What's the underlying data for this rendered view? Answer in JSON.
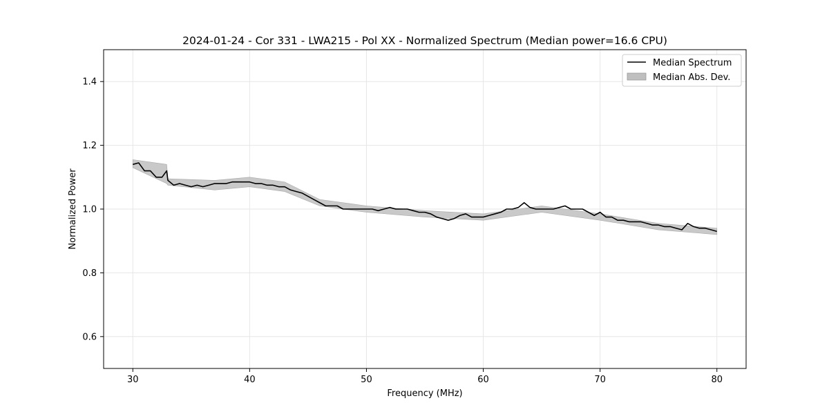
{
  "chart_data": {
    "type": "line",
    "title": "2024-01-24 - Cor 331 - LWA215 - Pol XX - Normalized Spectrum (Median power=16.6 CPU)",
    "xlabel": "Frequency (MHz)",
    "ylabel": "Normalized Power",
    "xlim": [
      27.5,
      82.5
    ],
    "ylim": [
      0.5,
      1.5
    ],
    "xticks": [
      30,
      40,
      50,
      60,
      70,
      80
    ],
    "yticks": [
      0.6,
      0.8,
      1.0,
      1.2,
      1.4
    ],
    "grid": true,
    "legend_position": "top-right",
    "legend": [
      {
        "label": "Median Spectrum",
        "kind": "line",
        "color": "#000000"
      },
      {
        "label": "Median Abs. Dev.",
        "kind": "band",
        "color": "#bfbfbf"
      }
    ],
    "series": [
      {
        "name": "Median Spectrum",
        "color": "#000000",
        "x": [
          30.0,
          30.5,
          31.0,
          31.5,
          32.0,
          32.5,
          32.9,
          33.0,
          33.5,
          34.0,
          34.5,
          35.0,
          35.5,
          36.0,
          36.5,
          37.0,
          37.5,
          38.0,
          38.5,
          39.0,
          39.5,
          40.0,
          40.5,
          41.0,
          41.5,
          42.0,
          42.5,
          43.0,
          43.5,
          44.0,
          44.5,
          45.0,
          45.5,
          46.0,
          46.5,
          47.0,
          47.5,
          48.0,
          48.5,
          49.0,
          49.5,
          50.0,
          50.5,
          51.0,
          51.5,
          52.0,
          52.5,
          53.0,
          53.5,
          54.0,
          54.5,
          55.0,
          55.5,
          56.0,
          56.5,
          57.0,
          57.5,
          58.0,
          58.5,
          59.0,
          59.5,
          60.0,
          60.5,
          61.0,
          61.5,
          62.0,
          62.5,
          63.0,
          63.5,
          64.0,
          64.5,
          65.0,
          65.5,
          66.0,
          66.5,
          67.0,
          67.5,
          68.0,
          68.5,
          69.0,
          69.5,
          70.0,
          70.5,
          71.0,
          71.5,
          72.0,
          72.5,
          73.0,
          73.5,
          74.0,
          74.5,
          75.0,
          75.5,
          76.0,
          76.5,
          77.0,
          77.5,
          78.0,
          78.5,
          79.0,
          79.5,
          80.0
        ],
        "values": [
          1.14,
          1.145,
          1.12,
          1.12,
          1.1,
          1.1,
          1.12,
          1.09,
          1.075,
          1.08,
          1.075,
          1.07,
          1.075,
          1.07,
          1.075,
          1.08,
          1.08,
          1.08,
          1.085,
          1.085,
          1.085,
          1.085,
          1.08,
          1.08,
          1.075,
          1.075,
          1.07,
          1.07,
          1.06,
          1.055,
          1.05,
          1.04,
          1.03,
          1.02,
          1.01,
          1.01,
          1.01,
          1.0,
          1.0,
          1.0,
          1.0,
          1.0,
          1.0,
          0.995,
          1.0,
          1.005,
          1.0,
          1.0,
          1.0,
          0.995,
          0.99,
          0.99,
          0.985,
          0.975,
          0.97,
          0.965,
          0.97,
          0.98,
          0.985,
          0.975,
          0.975,
          0.975,
          0.98,
          0.985,
          0.99,
          1.0,
          1.0,
          1.005,
          1.02,
          1.005,
          1.0,
          1.0,
          1.0,
          1.0,
          1.005,
          1.01,
          1.0,
          1.0,
          1.0,
          0.99,
          0.98,
          0.99,
          0.975,
          0.975,
          0.965,
          0.965,
          0.96,
          0.96,
          0.96,
          0.955,
          0.95,
          0.95,
          0.945,
          0.945,
          0.94,
          0.935,
          0.955,
          0.945,
          0.94,
          0.94,
          0.935,
          0.93
        ]
      },
      {
        "name": "Median Abs. Dev.",
        "color": "#bfbfbf",
        "x": [
          30.0,
          32.9,
          33.0,
          37.0,
          40.0,
          43.0,
          46.0,
          50.0,
          55.0,
          60.0,
          65.0,
          70.0,
          75.0,
          80.0
        ],
        "lower": [
          1.13,
          1.08,
          1.075,
          1.06,
          1.07,
          1.055,
          1.01,
          0.99,
          0.975,
          0.965,
          0.99,
          0.965,
          0.935,
          0.92
        ],
        "upper": [
          1.155,
          1.14,
          1.095,
          1.09,
          1.1,
          1.085,
          1.03,
          1.01,
          0.995,
          0.985,
          1.01,
          0.985,
          0.955,
          0.94
        ]
      }
    ]
  }
}
